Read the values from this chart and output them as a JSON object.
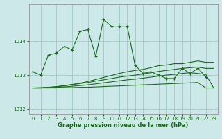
{
  "xlabel": "Graphe pression niveau de la mer (hPa)",
  "background_color": "#cde8e8",
  "grid_color": "#a0c8c8",
  "line_color": "#1a6b1a",
  "ylim": [
    1011.85,
    1015.1
  ],
  "yticks": [
    1012,
    1013,
    1014
  ],
  "xlim": [
    -0.5,
    23.5
  ],
  "xticks": [
    0,
    1,
    2,
    3,
    4,
    5,
    6,
    7,
    8,
    9,
    10,
    11,
    12,
    13,
    14,
    15,
    16,
    17,
    18,
    19,
    20,
    21,
    22,
    23
  ],
  "series": [
    {
      "x": [
        0,
        1,
        2,
        3,
        4,
        5,
        6,
        7,
        8,
        9,
        10,
        11,
        12,
        13,
        14,
        15,
        16,
        17,
        18,
        19,
        20,
        21,
        22
      ],
      "y": [
        1013.1,
        1013.0,
        1013.6,
        1013.65,
        1013.85,
        1013.75,
        1014.3,
        1014.35,
        1013.55,
        1014.65,
        1014.45,
        1014.45,
        1014.45,
        1013.3,
        1013.05,
        1013.1,
        1013.0,
        1012.9,
        1012.9,
        1013.2,
        1013.05,
        1013.2,
        1012.95
      ],
      "marker": true
    },
    {
      "x": [
        0,
        1,
        2,
        3,
        4,
        5,
        6,
        7,
        8,
        9,
        10,
        11,
        12,
        13,
        14,
        15,
        16,
        17,
        18,
        19,
        20,
        21,
        22,
        23
      ],
      "y": [
        1012.62,
        1012.62,
        1012.63,
        1012.65,
        1012.68,
        1012.72,
        1012.76,
        1012.81,
        1012.87,
        1012.93,
        1012.99,
        1013.05,
        1013.1,
        1013.14,
        1013.17,
        1013.22,
        1013.28,
        1013.3,
        1013.34,
        1013.34,
        1013.38,
        1013.42,
        1013.38,
        1013.38
      ],
      "marker": false
    },
    {
      "x": [
        0,
        1,
        2,
        3,
        4,
        5,
        6,
        7,
        8,
        9,
        10,
        11,
        12,
        13,
        14,
        15,
        16,
        17,
        18,
        19,
        20,
        21,
        22,
        23
      ],
      "y": [
        1012.62,
        1012.63,
        1012.64,
        1012.66,
        1012.69,
        1012.72,
        1012.75,
        1012.78,
        1012.82,
        1012.86,
        1012.9,
        1012.94,
        1012.97,
        1013.0,
        1013.03,
        1013.07,
        1013.11,
        1013.14,
        1013.17,
        1013.2,
        1013.22,
        1013.24,
        1013.2,
        1013.2
      ],
      "marker": false
    },
    {
      "x": [
        0,
        1,
        2,
        3,
        4,
        5,
        6,
        7,
        8,
        9,
        10,
        11,
        12,
        13,
        14,
        15,
        16,
        17,
        18,
        19,
        20,
        21,
        22,
        23
      ],
      "y": [
        1012.62,
        1012.62,
        1012.63,
        1012.64,
        1012.65,
        1012.67,
        1012.69,
        1012.71,
        1012.74,
        1012.77,
        1012.8,
        1012.83,
        1012.86,
        1012.88,
        1012.91,
        1012.94,
        1012.97,
        1013.0,
        1013.02,
        1013.05,
        1013.07,
        1013.05,
        1013.02,
        1012.62
      ],
      "marker": false
    },
    {
      "x": [
        0,
        1,
        2,
        3,
        4,
        5,
        6,
        7,
        8,
        9,
        10,
        11,
        12,
        13,
        14,
        15,
        16,
        17,
        18,
        19,
        20,
        21,
        22,
        23
      ],
      "y": [
        1012.62,
        1012.62,
        1012.62,
        1012.62,
        1012.63,
        1012.63,
        1012.64,
        1012.64,
        1012.65,
        1012.66,
        1012.67,
        1012.68,
        1012.69,
        1012.7,
        1012.71,
        1012.72,
        1012.73,
        1012.74,
        1012.75,
        1012.76,
        1012.77,
        1012.78,
        1012.62,
        1012.62
      ],
      "marker": false
    }
  ]
}
